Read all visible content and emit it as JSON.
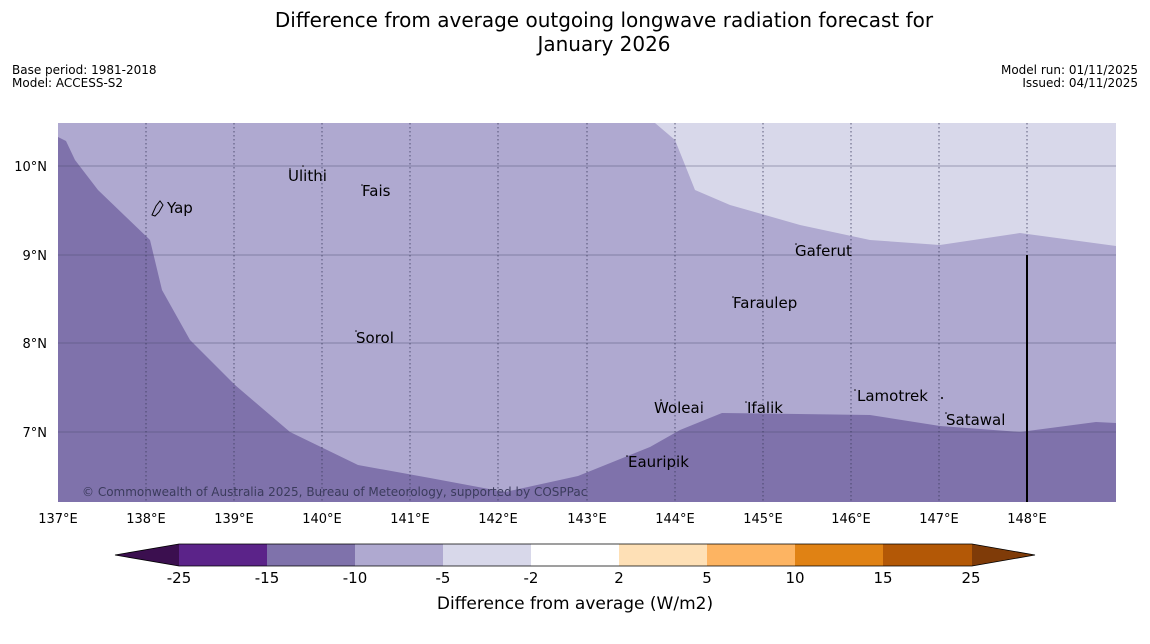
{
  "title_line1": "Difference from average outgoing longwave radiation forecast for",
  "title_line2": "January 2026",
  "base_period": "Base period: 1981-2018",
  "model": "Model: ACCESS-S2",
  "model_run": "Model run: 01/11/2025",
  "issued": "Issued: 04/11/2025",
  "copyright": "© Commonwealth of Australia 2025, Bureau of Meteorology, supported by COSPPac",
  "axes": {
    "lon_labels": [
      "137°E",
      "138°E",
      "139°E",
      "140°E",
      "141°E",
      "142°E",
      "143°E",
      "144°E",
      "145°E",
      "146°E",
      "147°E",
      "148°E"
    ],
    "lat_labels": [
      "10°N",
      "9°N",
      "8°N",
      "7°N"
    ]
  },
  "places": [
    {
      "name": "Ulithi"
    },
    {
      "name": "Fais"
    },
    {
      "name": "Yap"
    },
    {
      "name": "Gaferut"
    },
    {
      "name": "Faraulep"
    },
    {
      "name": "Sorol"
    },
    {
      "name": "Lamotrek"
    },
    {
      "name": "Woleai"
    },
    {
      "name": "Ifalik"
    },
    {
      "name": "Satawal"
    },
    {
      "name": "Eauripik"
    }
  ],
  "colorbar": {
    "label": "Difference from average (W/m2)",
    "ticks": [
      "-25",
      "-15",
      "-10",
      "-5",
      "-2",
      "2",
      "5",
      "10",
      "15",
      "25"
    ],
    "colors": {
      "lt_neg25": "#3b0f4f",
      "neg25_neg15": "#5b2389",
      "neg15_neg10": "#7f72ab",
      "neg10_neg5": "#afa9d0",
      "neg5_neg2": "#d8d8ea",
      "neg2_2": "#ffffff",
      "2_5": "#fee0b6",
      "5_10": "#fdb462",
      "10_15": "#e08214",
      "15_25": "#b35806",
      "gt_25": "#7f3b08"
    }
  }
}
